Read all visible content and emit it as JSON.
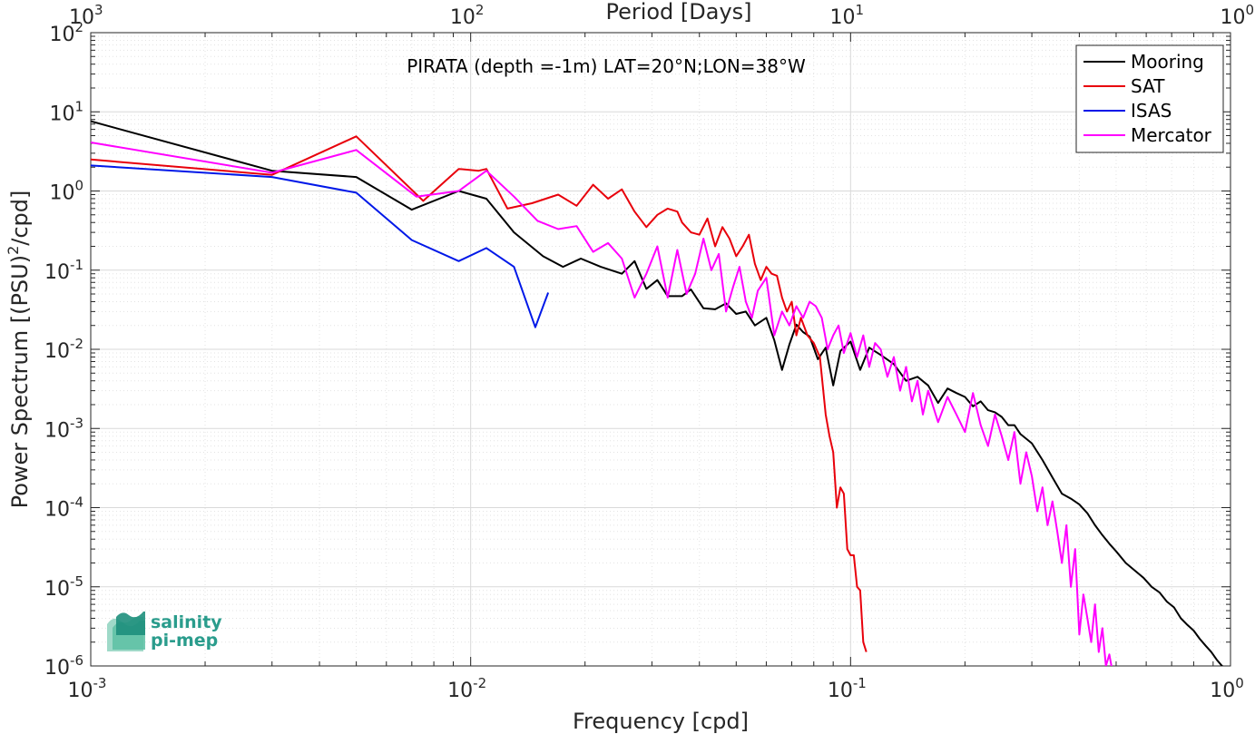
{
  "chart_data": {
    "type": "line",
    "title": "PIRATA (depth =-1m) LAT=20°N;LON=38°W",
    "xlabel": "Frequency [cpd]",
    "ylabel": "Power Spectrum [(PSU)",
    "ylabel_sup": "2",
    "ylabel_tail": "/cpd]",
    "x2label": "Period [Days]",
    "xscale": "log",
    "yscale": "log",
    "xlim": [
      0.001,
      1
    ],
    "ylim": [
      1e-06,
      100
    ],
    "grid": true,
    "legend_position": "top-right",
    "x_ticks": [
      {
        "base": "10",
        "exp": "-3"
      },
      {
        "base": "10",
        "exp": "-2"
      },
      {
        "base": "10",
        "exp": "-1"
      },
      {
        "base": "10",
        "exp": "0"
      }
    ],
    "x2_ticks": [
      {
        "base": "10",
        "exp": "3"
      },
      {
        "base": "10",
        "exp": "2"
      },
      {
        "base": "10",
        "exp": "1"
      },
      {
        "base": "10",
        "exp": "0"
      }
    ],
    "y_ticks": [
      {
        "base": "10",
        "exp": "-6"
      },
      {
        "base": "10",
        "exp": "-5"
      },
      {
        "base": "10",
        "exp": "-4"
      },
      {
        "base": "10",
        "exp": "-3"
      },
      {
        "base": "10",
        "exp": "-2"
      },
      {
        "base": "10",
        "exp": "-1"
      },
      {
        "base": "10",
        "exp": "0"
      },
      {
        "base": "10",
        "exp": "1"
      },
      {
        "base": "10",
        "exp": "2"
      }
    ],
    "series": [
      {
        "name": "Mooring",
        "color": "#000000",
        "x": [
          0.001,
          0.003,
          0.005,
          0.007,
          0.0093,
          0.011,
          0.013,
          0.0155,
          0.0175,
          0.0195,
          0.022,
          0.025,
          0.027,
          0.029,
          0.031,
          0.033,
          0.036,
          0.038,
          0.041,
          0.044,
          0.047,
          0.05,
          0.053,
          0.056,
          0.06,
          0.063,
          0.066,
          0.069,
          0.072,
          0.075,
          0.078,
          0.082,
          0.086,
          0.09,
          0.094,
          0.1,
          0.106,
          0.112,
          0.12,
          0.13,
          0.14,
          0.15,
          0.16,
          0.17,
          0.18,
          0.19,
          0.2,
          0.21,
          0.22,
          0.23,
          0.24,
          0.25,
          0.26,
          0.27,
          0.28,
          0.3,
          0.32,
          0.34,
          0.36,
          0.38,
          0.4,
          0.42,
          0.44,
          0.46,
          0.48,
          0.5,
          0.53,
          0.56,
          0.59,
          0.62,
          0.65,
          0.68,
          0.71,
          0.74,
          0.77,
          0.8,
          0.83,
          0.86,
          0.89,
          0.92,
          0.95,
          0.98
        ],
        "y": [
          7.6,
          1.8,
          1.5,
          0.58,
          1.0,
          0.8,
          0.3,
          0.15,
          0.11,
          0.14,
          0.11,
          0.09,
          0.13,
          0.058,
          0.075,
          0.047,
          0.047,
          0.057,
          0.033,
          0.032,
          0.038,
          0.028,
          0.03,
          0.02,
          0.025,
          0.013,
          0.0055,
          0.0115,
          0.0205,
          0.0165,
          0.0145,
          0.0075,
          0.0105,
          0.0035,
          0.0095,
          0.0125,
          0.0055,
          0.0105,
          0.0085,
          0.0065,
          0.004,
          0.0045,
          0.0035,
          0.0021,
          0.0032,
          0.0028,
          0.0025,
          0.0019,
          0.0022,
          0.0017,
          0.0016,
          0.0014,
          0.0011,
          0.0011,
          0.00085,
          0.00065,
          0.0004,
          0.00024,
          0.00015,
          0.00013,
          0.00011,
          8.5e-05,
          6e-05,
          4.5e-05,
          3.5e-05,
          2.8e-05,
          2e-05,
          1.6e-05,
          1.3e-05,
          1e-05,
          8.5e-06,
          6.5e-06,
          5.5e-06,
          4e-06,
          3.3e-06,
          2.8e-06,
          2.2e-06,
          1.8e-06,
          1.5e-06,
          1.2e-06,
          1e-06,
          9e-07
        ]
      },
      {
        "name": "SAT",
        "color": "#e8000b",
        "x": [
          0.001,
          0.003,
          0.005,
          0.0075,
          0.0093,
          0.0105,
          0.011,
          0.0125,
          0.0145,
          0.017,
          0.019,
          0.021,
          0.023,
          0.025,
          0.027,
          0.029,
          0.031,
          0.033,
          0.035,
          0.036,
          0.038,
          0.04,
          0.042,
          0.044,
          0.046,
          0.048,
          0.05,
          0.052,
          0.054,
          0.056,
          0.058,
          0.06,
          0.062,
          0.064,
          0.066,
          0.068,
          0.07,
          0.072,
          0.074,
          0.077,
          0.08,
          0.083,
          0.086,
          0.088,
          0.09,
          0.092,
          0.094,
          0.096,
          0.098,
          0.1,
          0.102,
          0.104,
          0.106,
          0.108,
          0.11
        ],
        "y": [
          2.5,
          1.6,
          4.9,
          0.75,
          1.9,
          1.8,
          1.9,
          0.6,
          0.7,
          0.9,
          0.65,
          1.2,
          0.8,
          1.05,
          0.55,
          0.35,
          0.5,
          0.6,
          0.55,
          0.4,
          0.3,
          0.28,
          0.45,
          0.2,
          0.35,
          0.25,
          0.15,
          0.2,
          0.28,
          0.12,
          0.075,
          0.11,
          0.09,
          0.085,
          0.045,
          0.03,
          0.04,
          0.015,
          0.025,
          0.015,
          0.012,
          0.008,
          0.0015,
          0.0008,
          0.0005,
          0.0001,
          0.00018,
          0.00015,
          3e-05,
          2.5e-05,
          2.5e-05,
          1e-05,
          9e-06,
          2e-06,
          1.5e-06
        ]
      },
      {
        "name": "ISAS",
        "color": "#0018e8",
        "x": [
          0.001,
          0.003,
          0.005,
          0.007,
          0.0093,
          0.011,
          0.013,
          0.0148,
          0.016
        ],
        "y": [
          2.1,
          1.5,
          0.95,
          0.24,
          0.13,
          0.19,
          0.11,
          0.019,
          0.052
        ]
      },
      {
        "name": "Mercator",
        "color": "#ff00ff",
        "x": [
          0.001,
          0.003,
          0.005,
          0.0072,
          0.0093,
          0.011,
          0.013,
          0.015,
          0.017,
          0.019,
          0.021,
          0.023,
          0.025,
          0.027,
          0.029,
          0.031,
          0.033,
          0.035,
          0.037,
          0.039,
          0.041,
          0.043,
          0.045,
          0.047,
          0.049,
          0.051,
          0.053,
          0.055,
          0.057,
          0.06,
          0.063,
          0.066,
          0.069,
          0.072,
          0.075,
          0.078,
          0.081,
          0.084,
          0.087,
          0.09,
          0.093,
          0.096,
          0.1,
          0.104,
          0.108,
          0.112,
          0.116,
          0.12,
          0.125,
          0.13,
          0.135,
          0.14,
          0.145,
          0.15,
          0.155,
          0.16,
          0.17,
          0.18,
          0.19,
          0.2,
          0.21,
          0.22,
          0.23,
          0.24,
          0.25,
          0.26,
          0.27,
          0.28,
          0.29,
          0.3,
          0.31,
          0.32,
          0.33,
          0.34,
          0.35,
          0.36,
          0.37,
          0.38,
          0.39,
          0.4,
          0.41,
          0.42,
          0.43,
          0.44,
          0.45,
          0.46,
          0.47,
          0.48,
          0.49
        ],
        "y": [
          4.1,
          1.7,
          3.3,
          0.85,
          1.0,
          1.8,
          0.85,
          0.42,
          0.33,
          0.36,
          0.17,
          0.22,
          0.14,
          0.045,
          0.09,
          0.2,
          0.045,
          0.18,
          0.05,
          0.09,
          0.25,
          0.1,
          0.16,
          0.03,
          0.06,
          0.11,
          0.04,
          0.025,
          0.055,
          0.08,
          0.015,
          0.03,
          0.02,
          0.035,
          0.025,
          0.04,
          0.035,
          0.025,
          0.01,
          0.015,
          0.02,
          0.009,
          0.016,
          0.008,
          0.015,
          0.006,
          0.012,
          0.01,
          0.0045,
          0.008,
          0.003,
          0.006,
          0.0022,
          0.004,
          0.0015,
          0.003,
          0.0012,
          0.0025,
          0.0015,
          0.0009,
          0.0028,
          0.0011,
          0.0006,
          0.0015,
          0.0008,
          0.0004,
          0.0009,
          0.0002,
          0.0005,
          0.00025,
          9e-05,
          0.00018,
          6e-05,
          0.00012,
          5e-05,
          2e-05,
          6e-05,
          1e-05,
          3e-05,
          2.5e-06,
          8e-06,
          4e-06,
          2e-06,
          6e-06,
          1.5e-06,
          3e-06,
          1e-06,
          1.4e-06,
          8e-07
        ]
      }
    ]
  },
  "logo": {
    "line1": "salinity",
    "line2": "pi-mep"
  }
}
